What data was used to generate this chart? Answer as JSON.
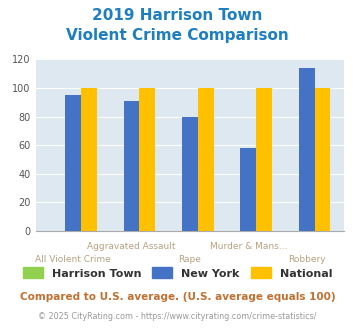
{
  "title_line1": "2019 Harrison Town",
  "title_line2": "Violent Crime Comparison",
  "top_labels": [
    "",
    "Aggravated Assault",
    "",
    "Murder & Mans...",
    ""
  ],
  "bottom_labels": [
    "All Violent Crime",
    "",
    "Rape",
    "",
    "Robbery"
  ],
  "series": [
    {
      "name": "Harrison Town",
      "values": [
        0,
        0,
        0,
        0,
        0
      ],
      "color": "#92d050"
    },
    {
      "name": "New York",
      "values": [
        95,
        91,
        80,
        58,
        114
      ],
      "color": "#4472c4"
    },
    {
      "name": "National",
      "values": [
        100,
        100,
        100,
        100,
        100
      ],
      "color": "#ffc000"
    }
  ],
  "ylim": [
    0,
    120
  ],
  "yticks": [
    0,
    20,
    40,
    60,
    80,
    100,
    120
  ],
  "title_color": "#1f7ebf",
  "xlabel_color": "#b8a080",
  "background_color": "#dde8f0",
  "footer_text": "Compared to U.S. average. (U.S. average equals 100)",
  "copyright_text": "© 2025 CityRating.com - https://www.cityrating.com/crime-statistics/",
  "footer_color": "#c07030",
  "copyright_color": "#999999",
  "bar_width": 0.27
}
